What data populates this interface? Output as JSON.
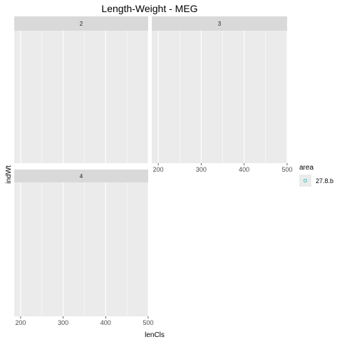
{
  "chart_data": {
    "type": "scatter",
    "title": "Length-Weight - MEG",
    "xlabel": "lenCls",
    "ylabel": "indWt",
    "xlim": [
      185,
      500
    ],
    "x_ticks": [
      200,
      300,
      400,
      500
    ],
    "grid": true,
    "facets": [
      {
        "label": "2",
        "points": [],
        "show_x_axis": false
      },
      {
        "label": "3",
        "points": [],
        "show_x_axis": true
      },
      {
        "label": "4",
        "points": [],
        "show_x_axis": true
      }
    ],
    "legend": {
      "title": "area",
      "placement": "right",
      "entries": [
        {
          "label": "27.8.b",
          "color": "#00BFC4",
          "marker": "open-circle"
        }
      ]
    }
  }
}
